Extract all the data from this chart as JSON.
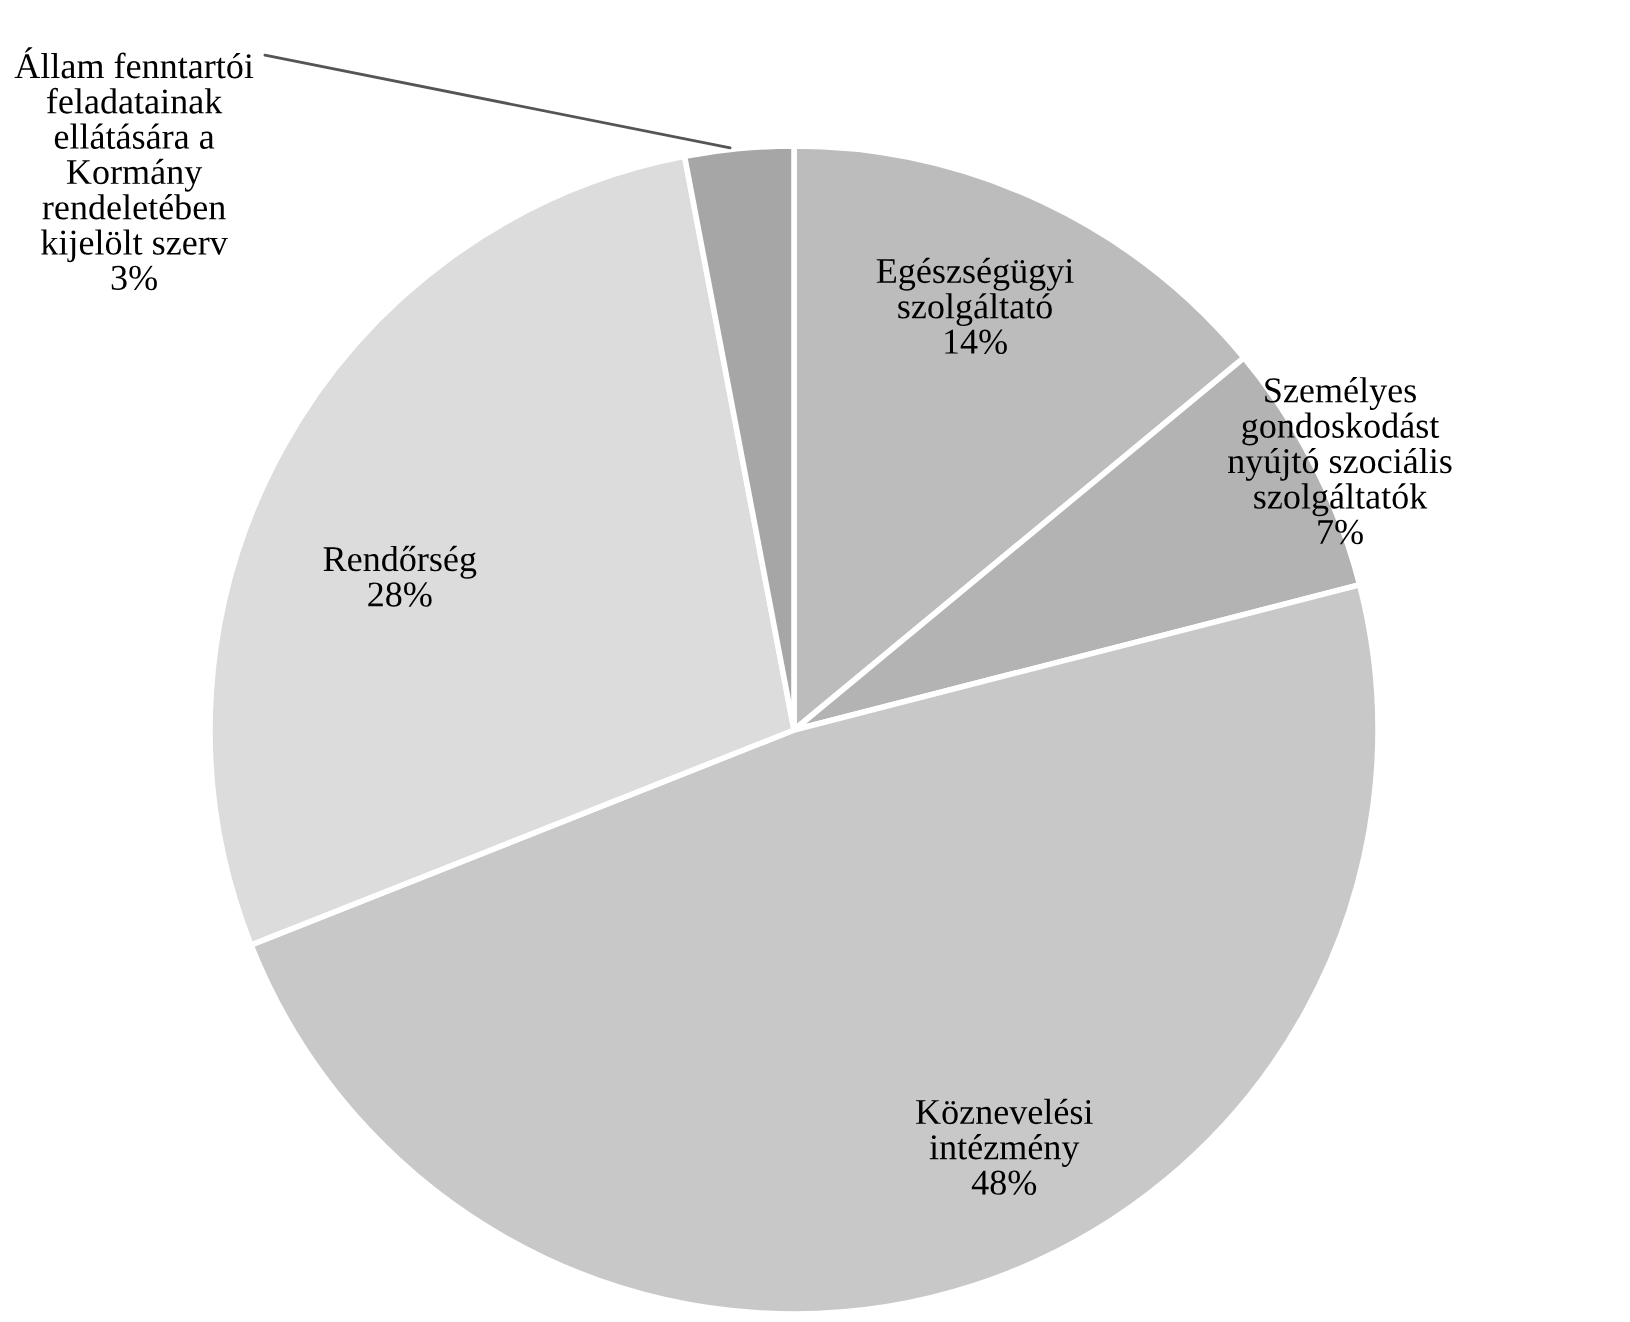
{
  "chart_data": {
    "type": "pie",
    "categories": [
      "Egészségügyi\nszolgáltató",
      "Személyes\ngondoskodást\nnyújtó szociális\nszolgáltatók",
      "Köznevelési\nintézmény",
      "Rendőrség",
      "Állam fenntartói\nfeladatainak\nellátására a\nKormány\nrendeletében\nkijelölt szerv"
    ],
    "values": [
      14,
      7,
      48,
      28,
      3
    ],
    "value_labels": [
      "14%",
      "7%",
      "48%",
      "28%",
      "3%"
    ],
    "colors": [
      "#bcbcbc",
      "#b3b3b3",
      "#c8c8c8",
      "#dcdcdc",
      "#a6a6a6"
    ],
    "legend": false
  }
}
